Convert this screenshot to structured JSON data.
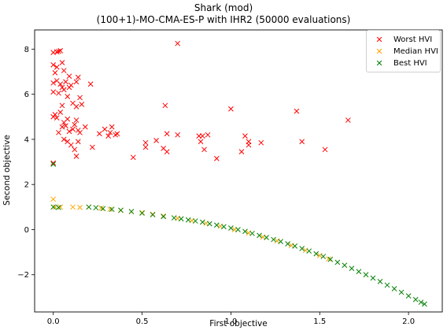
{
  "chart_data": {
    "type": "scatter",
    "title": "Shark (mod)",
    "subtitle": "(100+1)-MO-CMA-ES-P with IHR2 (50000 evaluations)",
    "xlabel": "First objective",
    "ylabel": "Second objective",
    "xlim": [
      -0.105,
      2.19
    ],
    "ylim": [
      -3.65,
      8.85
    ],
    "xticks": [
      {
        "value": 0.0,
        "label": "0.0"
      },
      {
        "value": 0.5,
        "label": "0.5"
      },
      {
        "value": 1.0,
        "label": "1.0"
      },
      {
        "value": 1.5,
        "label": "1.5"
      },
      {
        "value": 2.0,
        "label": "2.0"
      }
    ],
    "yticks": [
      {
        "value": -2,
        "label": "−2"
      },
      {
        "value": 0,
        "label": "0"
      },
      {
        "value": 2,
        "label": "2"
      },
      {
        "value": 4,
        "label": "4"
      },
      {
        "value": 6,
        "label": "6"
      },
      {
        "value": 8,
        "label": "8"
      }
    ],
    "grid": false,
    "legend_position": "top-right",
    "marker": "x",
    "series": [
      {
        "name": "Worst HVI",
        "color": "#ff0000",
        "points": [
          [
            0.0,
            7.85
          ],
          [
            0.02,
            7.88
          ],
          [
            0.03,
            7.9
          ],
          [
            0.04,
            7.93
          ],
          [
            0.0,
            7.3
          ],
          [
            0.02,
            7.2
          ],
          [
            0.05,
            7.4
          ],
          [
            0.06,
            7.05
          ],
          [
            0.01,
            6.95
          ],
          [
            0.0,
            6.5
          ],
          [
            0.02,
            6.6
          ],
          [
            0.04,
            6.45
          ],
          [
            0.05,
            6.3
          ],
          [
            0.07,
            6.55
          ],
          [
            0.09,
            6.8
          ],
          [
            0.1,
            6.4
          ],
          [
            0.13,
            6.55
          ],
          [
            0.14,
            6.75
          ],
          [
            0.09,
            6.3
          ],
          [
            0.0,
            6.1
          ],
          [
            0.03,
            6.05
          ],
          [
            0.06,
            6.2
          ],
          [
            0.08,
            5.9
          ],
          [
            0.11,
            5.6
          ],
          [
            0.13,
            5.45
          ],
          [
            0.15,
            5.85
          ],
          [
            0.16,
            5.55
          ],
          [
            0.21,
            6.45
          ],
          [
            0.05,
            5.5
          ],
          [
            0.0,
            5.0
          ],
          [
            0.01,
            5.1
          ],
          [
            0.02,
            4.95
          ],
          [
            0.04,
            5.2
          ],
          [
            0.06,
            4.75
          ],
          [
            0.08,
            4.9
          ],
          [
            0.05,
            4.55
          ],
          [
            0.07,
            4.6
          ],
          [
            0.11,
            4.45
          ],
          [
            0.12,
            4.65
          ],
          [
            0.13,
            4.85
          ],
          [
            0.14,
            4.4
          ],
          [
            0.15,
            4.3
          ],
          [
            0.18,
            4.55
          ],
          [
            0.03,
            4.3
          ],
          [
            0.09,
            4.35
          ],
          [
            0.06,
            4.0
          ],
          [
            0.08,
            3.9
          ],
          [
            0.1,
            3.75
          ],
          [
            0.12,
            3.55
          ],
          [
            0.13,
            3.25
          ],
          [
            0.14,
            3.9
          ],
          [
            0.0,
            2.95
          ],
          [
            0.22,
            3.65
          ],
          [
            0.26,
            4.25
          ],
          [
            0.29,
            4.45
          ],
          [
            0.31,
            4.15
          ],
          [
            0.32,
            4.3
          ],
          [
            0.33,
            4.55
          ],
          [
            0.35,
            4.2
          ],
          [
            0.36,
            4.25
          ],
          [
            0.45,
            3.2
          ],
          [
            0.52,
            3.85
          ],
          [
            0.52,
            3.65
          ],
          [
            0.58,
            3.95
          ],
          [
            0.62,
            3.6
          ],
          [
            0.64,
            3.45
          ],
          [
            0.64,
            4.25
          ],
          [
            0.63,
            5.5
          ],
          [
            0.7,
            4.2
          ],
          [
            0.7,
            8.25
          ],
          [
            0.82,
            4.15
          ],
          [
            0.83,
            3.9
          ],
          [
            0.84,
            4.15
          ],
          [
            0.85,
            3.55
          ],
          [
            0.87,
            4.2
          ],
          [
            0.92,
            3.15
          ],
          [
            1.0,
            5.35
          ],
          [
            1.06,
            3.45
          ],
          [
            1.08,
            4.15
          ],
          [
            1.1,
            3.75
          ],
          [
            1.1,
            3.9
          ],
          [
            1.17,
            3.85
          ],
          [
            1.37,
            5.25
          ],
          [
            1.4,
            3.9
          ],
          [
            1.53,
            3.55
          ],
          [
            1.66,
            4.85
          ]
        ]
      },
      {
        "name": "Median HVI",
        "color": "#ffa500",
        "points": [
          [
            0.0,
            1.35
          ],
          [
            0.01,
            1.0
          ],
          [
            0.04,
            1.0
          ],
          [
            0.11,
            1.0
          ],
          [
            0.15,
            0.98
          ],
          [
            0.2,
            1.0
          ],
          [
            0.27,
            0.95
          ],
          [
            0.32,
            0.9
          ],
          [
            0.38,
            0.85
          ],
          [
            0.44,
            0.8
          ],
          [
            0.5,
            0.75
          ],
          [
            0.56,
            0.68
          ],
          [
            0.62,
            0.6
          ],
          [
            0.7,
            0.5
          ],
          [
            0.78,
            0.4
          ],
          [
            0.86,
            0.28
          ],
          [
            0.94,
            0.15
          ],
          [
            1.02,
            0.0
          ],
          [
            1.1,
            -0.15
          ],
          [
            1.18,
            -0.33
          ],
          [
            1.26,
            -0.5
          ],
          [
            1.34,
            -0.7
          ],
          [
            1.42,
            -0.92
          ],
          [
            1.5,
            -1.15
          ],
          [
            1.55,
            -1.3
          ]
        ]
      },
      {
        "name": "Best HVI",
        "color": "#008000",
        "points": [
          [
            0.0,
            2.9
          ],
          [
            0.0,
            1.0
          ],
          [
            0.03,
            0.98
          ],
          [
            0.2,
            1.0
          ],
          [
            0.24,
            0.97
          ],
          [
            0.28,
            0.93
          ],
          [
            0.33,
            0.9
          ],
          [
            0.38,
            0.86
          ],
          [
            0.44,
            0.8
          ],
          [
            0.5,
            0.73
          ],
          [
            0.56,
            0.66
          ],
          [
            0.62,
            0.58
          ],
          [
            0.68,
            0.52
          ],
          [
            0.72,
            0.48
          ],
          [
            0.76,
            0.43
          ],
          [
            0.8,
            0.38
          ],
          [
            0.84,
            0.33
          ],
          [
            0.88,
            0.26
          ],
          [
            0.92,
            0.2
          ],
          [
            0.96,
            0.13
          ],
          [
            1.0,
            0.07
          ],
          [
            1.04,
            0.0
          ],
          [
            1.08,
            -0.08
          ],
          [
            1.12,
            -0.17
          ],
          [
            1.16,
            -0.26
          ],
          [
            1.2,
            -0.35
          ],
          [
            1.24,
            -0.44
          ],
          [
            1.28,
            -0.53
          ],
          [
            1.32,
            -0.63
          ],
          [
            1.36,
            -0.73
          ],
          [
            1.4,
            -0.84
          ],
          [
            1.44,
            -0.95
          ],
          [
            1.48,
            -1.07
          ],
          [
            1.52,
            -1.19
          ],
          [
            1.56,
            -1.32
          ],
          [
            1.6,
            -1.45
          ],
          [
            1.64,
            -1.58
          ],
          [
            1.68,
            -1.72
          ],
          [
            1.72,
            -1.86
          ],
          [
            1.76,
            -2.0
          ],
          [
            1.8,
            -2.15
          ],
          [
            1.84,
            -2.3
          ],
          [
            1.88,
            -2.46
          ],
          [
            1.92,
            -2.62
          ],
          [
            1.96,
            -2.78
          ],
          [
            2.0,
            -2.94
          ],
          [
            2.04,
            -3.1
          ],
          [
            2.07,
            -3.22
          ],
          [
            2.09,
            -3.3
          ]
        ]
      }
    ]
  }
}
